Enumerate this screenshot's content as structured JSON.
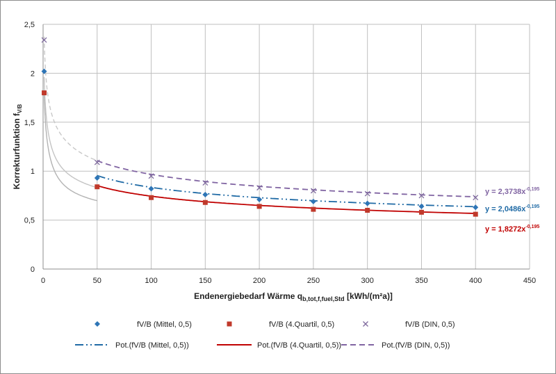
{
  "chart_data": {
    "type": "scatter",
    "title": "",
    "xlabel": {
      "text": "Endenergiebedarf Wärme q",
      "sub": "b,tot,f,fuel,Std",
      "unit": " [kWh/(m²a)]"
    },
    "ylabel": {
      "text": "Korrekturfunktion f",
      "sub": "V/B"
    },
    "xlim": [
      0,
      450
    ],
    "ylim": [
      0,
      2.5
    ],
    "x_ticks": [
      "0",
      "50",
      "100",
      "150",
      "200",
      "250",
      "300",
      "350",
      "400",
      "450"
    ],
    "y_ticks": [
      "0",
      "0,5",
      "1",
      "1,5",
      "2",
      "2,5"
    ],
    "grid": true,
    "x": [
      1,
      50,
      100,
      150,
      200,
      250,
      300,
      350,
      400
    ],
    "series": [
      {
        "name": "fV/B (Mittel, 0,5)",
        "marker": "diamond",
        "color": "#2e75b6",
        "values": [
          2.02,
          0.93,
          0.82,
          0.76,
          0.71,
          0.69,
          0.67,
          0.64,
          0.63
        ]
      },
      {
        "name": "fV/B (4.Quartil, 0,5)",
        "marker": "square",
        "color": "#c0392b",
        "values": [
          1.8,
          0.84,
          0.73,
          0.68,
          0.64,
          0.61,
          0.6,
          0.58,
          0.56
        ]
      },
      {
        "name": "fV/B (DIN, 0,5)",
        "marker": "x",
        "color": "#7f6a9e",
        "values": [
          2.34,
          1.09,
          0.95,
          0.88,
          0.83,
          0.8,
          0.77,
          0.75,
          0.73
        ]
      }
    ],
    "trendlines": [
      {
        "name": "Pot.(fV/B (Mittel, 0,5))",
        "color": "#1f6aa5",
        "dash": "12,4,2,4,2,4",
        "coef": 2.0486,
        "exp": -0.195,
        "equation": "y = 2,0486x",
        "exponent_label": "-0,195"
      },
      {
        "name": "Pot.(fV/B (4.Quartil, 0,5))",
        "color": "#c00000",
        "dash": "",
        "coef": 1.8272,
        "exp": -0.195,
        "equation": "y = 1,8272x",
        "exponent_label": "-0,195"
      },
      {
        "name": "Pot.(fV/B (DIN, 0,5))",
        "color": "#8064a2",
        "dash": "8,5",
        "coef": 2.3738,
        "exp": -0.195,
        "equation": "y = 2,3738x",
        "exponent_label": "-0,195"
      }
    ],
    "legend_position": "bottom"
  }
}
